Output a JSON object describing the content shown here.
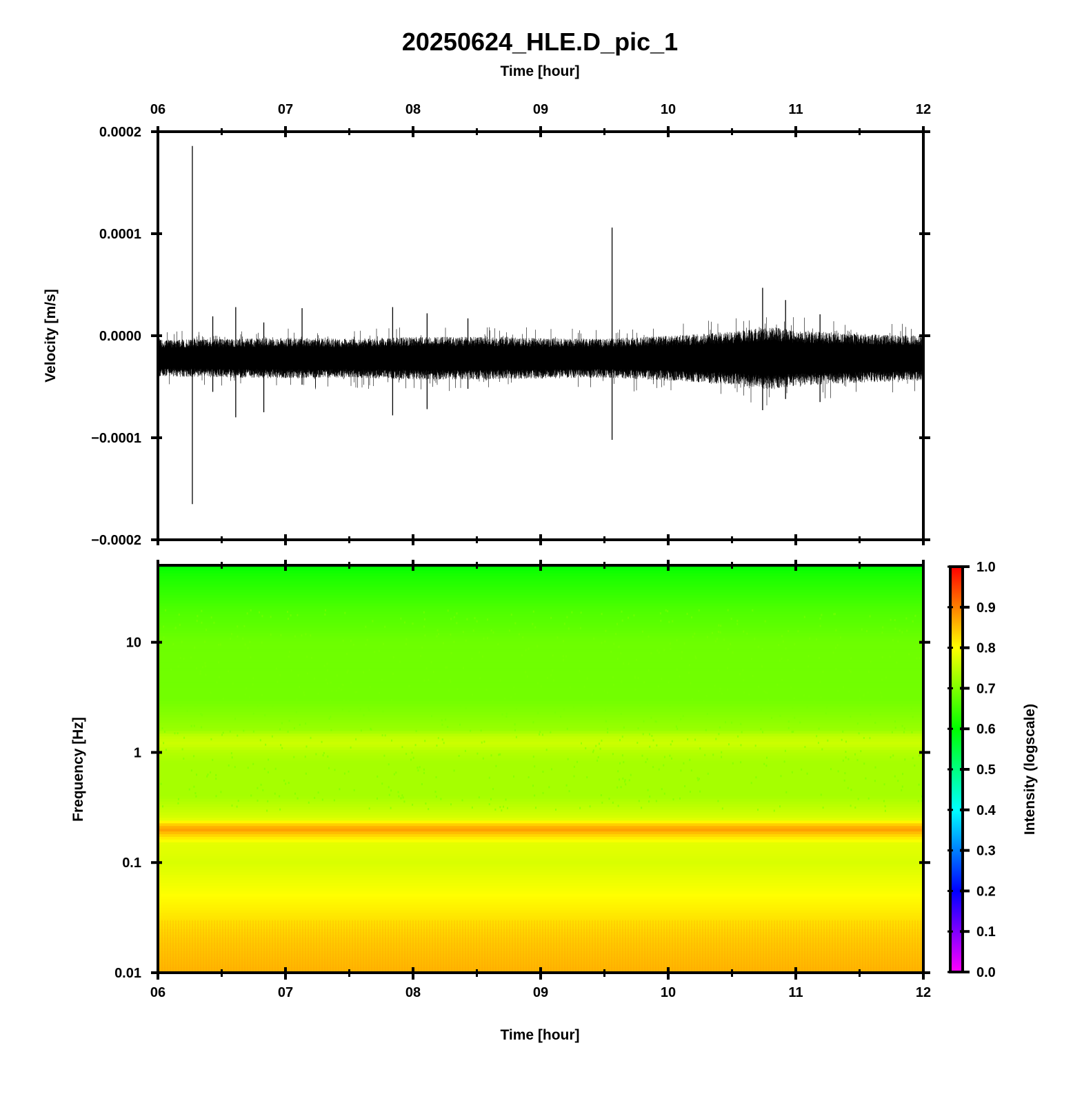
{
  "figure": {
    "title": "20250624_HLE.D_pic_1",
    "top_xlabel": "Time [hour]",
    "bottom_xlabel": "Time [hour]"
  },
  "chart_data": [
    {
      "type": "line",
      "name": "waveform",
      "xlabel": "Time [hour]",
      "ylabel": "Velocity [m/s]",
      "xlim": [
        6,
        12
      ],
      "ylim": [
        -0.0002,
        0.0002
      ],
      "x_ticks": [
        "06",
        "07",
        "08",
        "09",
        "10",
        "11",
        "12"
      ],
      "y_ticks": [
        "-0.0002",
        "-0.0001",
        "0.0000",
        "0.0001",
        "0.0002"
      ],
      "y_tick_values": [
        -0.0002,
        -0.0001,
        0.0,
        0.0001,
        0.0002
      ],
      "baseline_offset": -2.2e-05,
      "noise_half_width": 2e-05,
      "envelope": {
        "x": [
          6.0,
          6.5,
          7.0,
          7.5,
          8.0,
          8.5,
          9.0,
          9.5,
          10.0,
          10.5,
          10.8,
          11.0,
          11.5,
          12.0
        ],
        "half_width": [
          1.8e-05,
          1.9e-05,
          2e-05,
          1.9e-05,
          2.1e-05,
          2.1e-05,
          2e-05,
          1.9e-05,
          2.2e-05,
          2.6e-05,
          3.1e-05,
          2.7e-05,
          2.4e-05,
          2.2e-05
        ]
      },
      "spikes": [
        {
          "x": 6.27,
          "max": 0.000186,
          "min": -0.000165
        },
        {
          "x": 6.43,
          "max": 1.9e-05,
          "min": -5.5e-05
        },
        {
          "x": 6.61,
          "max": 2.8e-05,
          "min": -8e-05
        },
        {
          "x": 6.83,
          "max": 1.3e-05,
          "min": -7.5e-05
        },
        {
          "x": 7.13,
          "max": 2.7e-05,
          "min": -4.8e-05
        },
        {
          "x": 7.84,
          "max": 2.8e-05,
          "min": -7.8e-05
        },
        {
          "x": 8.11,
          "max": 2.2e-05,
          "min": -7.2e-05
        },
        {
          "x": 8.43,
          "max": 1.7e-05,
          "min": -5.2e-05
        },
        {
          "x": 9.56,
          "max": 0.000106,
          "min": -0.000102
        },
        {
          "x": 10.74,
          "max": 4.7e-05,
          "min": -7.3e-05
        },
        {
          "x": 10.92,
          "max": 3.5e-05,
          "min": -6.2e-05
        },
        {
          "x": 11.19,
          "max": 2.1e-05,
          "min": -6.5e-05
        }
      ]
    },
    {
      "type": "heatmap",
      "name": "spectrogram",
      "xlabel": "Time [hour]",
      "ylabel": "Frequency [Hz]",
      "xlim": [
        6,
        12
      ],
      "ylim": [
        0.01,
        50
      ],
      "yscale": "log",
      "x_ticks": [
        "06",
        "07",
        "08",
        "09",
        "10",
        "11",
        "12"
      ],
      "y_ticks": [
        "0.01",
        "0.1",
        "1",
        "10"
      ],
      "y_tick_values": [
        0.01,
        0.1,
        1,
        10
      ],
      "intensity_profile": {
        "frequency": [
          0.01,
          0.02,
          0.05,
          0.1,
          0.15,
          0.18,
          0.2,
          0.22,
          0.25,
          0.4,
          0.8,
          1.0,
          1.2,
          1.4,
          1.6,
          3.0,
          10.0,
          20.0,
          40.0,
          50.0
        ],
        "intensity": [
          0.86,
          0.84,
          0.8,
          0.77,
          0.78,
          0.84,
          0.88,
          0.84,
          0.77,
          0.73,
          0.73,
          0.74,
          0.76,
          0.75,
          0.72,
          0.69,
          0.685,
          0.66,
          0.62,
          0.6
        ]
      },
      "colorbar": {
        "label": "Intensity (logscale)",
        "range": [
          0.0,
          1.0
        ],
        "ticks": [
          "0.0",
          "0.1",
          "0.2",
          "0.3",
          "0.4",
          "0.5",
          "0.6",
          "0.7",
          "0.8",
          "0.9",
          "1.0"
        ],
        "tick_values": [
          0.0,
          0.1,
          0.2,
          0.3,
          0.4,
          0.5,
          0.6,
          0.7,
          0.8,
          0.9,
          1.0
        ],
        "colormap_stops": [
          "#ff00ff",
          "#0000ff",
          "#00ffff",
          "#00ff00",
          "#ffff00",
          "#ff0000"
        ]
      }
    }
  ]
}
